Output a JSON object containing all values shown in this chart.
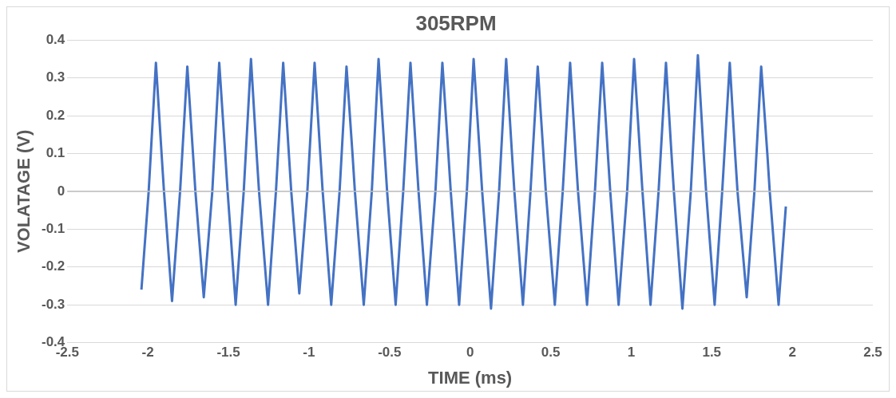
{
  "chart_data": {
    "type": "line",
    "title": "305RPM",
    "xlabel": "TIME (ms)",
    "ylabel": "VOLATAGE (V)",
    "xlim": [
      -2.5,
      2.5
    ],
    "xticks": [
      -2.5,
      -2,
      -1.5,
      -1,
      -0.5,
      0,
      0.5,
      1,
      1.5,
      2,
      2.5
    ],
    "ylim": [
      -0.4,
      0.4
    ],
    "yticks": [
      -0.4,
      -0.3,
      -0.2,
      -0.1,
      0,
      0.1,
      0.2,
      0.3,
      0.4
    ],
    "grid": "y",
    "legend": false,
    "marker": "none",
    "line_style": "solid",
    "series": [
      {
        "color": "#4472c4",
        "x": [
          -2.04,
          -1.995,
          -1.95,
          -1.915,
          -1.9,
          -1.85,
          -1.8,
          -1.755,
          -1.72,
          -1.705,
          -1.653,
          -1.6,
          -1.557,
          -1.52,
          -1.505,
          -1.455,
          -1.405,
          -1.36,
          -1.325,
          -1.31,
          -1.254,
          -1.205,
          -1.16,
          -1.125,
          -1.11,
          -1.06,
          -1.01,
          -0.965,
          -0.93,
          -0.915,
          -0.862,
          -0.81,
          -0.767,
          -0.73,
          -0.715,
          -0.66,
          -0.61,
          -0.568,
          -0.53,
          -0.515,
          -0.462,
          -0.415,
          -0.37,
          -0.335,
          -0.32,
          -0.268,
          -0.215,
          -0.172,
          -0.135,
          -0.12,
          -0.068,
          -0.02,
          0.022,
          0.06,
          0.075,
          0.13,
          0.18,
          0.224,
          0.26,
          0.275,
          0.328,
          0.375,
          0.42,
          0.455,
          0.47,
          0.526,
          0.575,
          0.621,
          0.655,
          0.67,
          0.726,
          0.775,
          0.82,
          0.855,
          0.87,
          0.922,
          0.975,
          1.018,
          1.055,
          1.07,
          1.12,
          1.17,
          1.216,
          1.25,
          1.265,
          1.318,
          1.37,
          1.414,
          1.45,
          1.465,
          1.518,
          1.565,
          1.612,
          1.645,
          1.66,
          1.717,
          1.765,
          1.807,
          1.845,
          1.86,
          1.915,
          1.96
        ],
        "values": [
          -0.26,
          0,
          0.34,
          0.1,
          0,
          -0.29,
          0,
          0.33,
          0.1,
          0,
          -0.28,
          0,
          0.34,
          0.1,
          0,
          -0.3,
          0,
          0.35,
          0.1,
          0,
          -0.3,
          0,
          0.34,
          0.1,
          0,
          -0.27,
          0,
          0.34,
          0.1,
          0,
          -0.3,
          0,
          0.33,
          0.1,
          0,
          -0.3,
          0,
          0.35,
          0.1,
          0,
          -0.3,
          0,
          0.34,
          0.1,
          0,
          -0.3,
          0,
          0.34,
          0.1,
          0,
          -0.3,
          0,
          0.35,
          0.1,
          0,
          -0.31,
          0,
          0.35,
          0.1,
          0,
          -0.3,
          0,
          0.33,
          0.1,
          0,
          -0.3,
          0,
          0.34,
          0.1,
          0,
          -0.3,
          0,
          0.34,
          0.1,
          0,
          -0.3,
          0,
          0.35,
          0.1,
          0,
          -0.3,
          0,
          0.34,
          0.1,
          0,
          -0.31,
          0,
          0.36,
          0.1,
          0,
          -0.3,
          0,
          0.34,
          0.1,
          0,
          -0.28,
          0,
          0.33,
          0.1,
          0,
          -0.3,
          -0.04
        ]
      }
    ]
  }
}
